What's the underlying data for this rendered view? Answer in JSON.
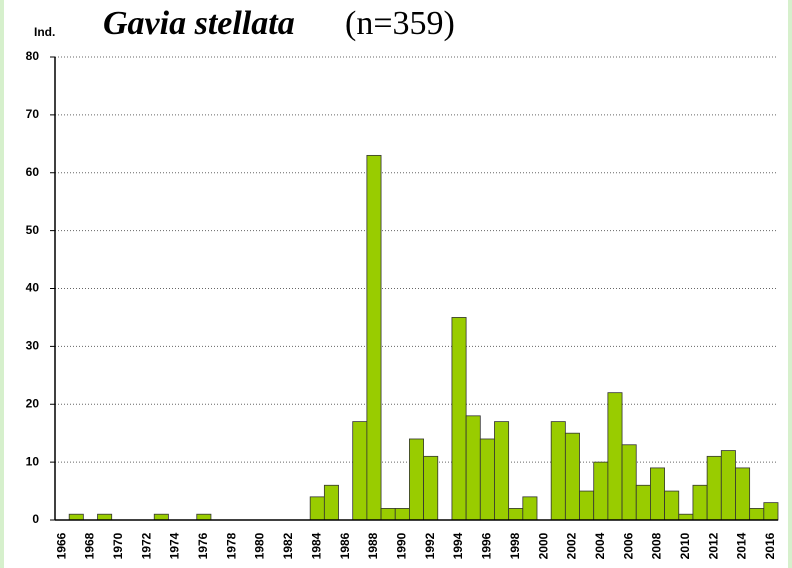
{
  "chart_data": {
    "type": "bar",
    "title": "Gavia stellata",
    "subtitle": "(n=359)",
    "y_label": "Ind.",
    "categories": [
      "1966",
      null,
      "1968",
      null,
      "1970",
      null,
      "1972",
      null,
      "1974",
      null,
      "1976",
      null,
      "1978",
      null,
      "1980",
      null,
      "1982",
      null,
      "1984",
      null,
      "1986",
      null,
      "1988",
      null,
      "1990",
      null,
      "1992",
      null,
      "1994",
      null,
      "1996",
      null,
      "1998",
      null,
      "2000",
      null,
      "2002",
      null,
      "2004",
      null,
      "2006",
      null,
      "2008",
      null,
      "2010",
      null,
      "2012",
      null,
      "2014",
      null,
      "2016"
    ],
    "values": [
      0,
      1,
      0,
      1,
      0,
      0,
      0,
      1,
      0,
      0,
      1,
      0,
      0,
      0,
      0,
      0,
      0,
      0,
      4,
      6,
      0,
      17,
      63,
      2,
      2,
      14,
      11,
      0,
      35,
      18,
      14,
      17,
      2,
      4,
      0,
      17,
      15,
      5,
      10,
      22,
      13,
      6,
      9,
      5,
      1,
      6,
      11,
      12,
      9,
      2,
      3
    ],
    "color": "#99cc00",
    "ylim": [
      0,
      80
    ],
    "yticks": [
      0,
      10,
      20,
      30,
      40,
      50,
      60,
      70,
      80
    ],
    "grid": true
  }
}
